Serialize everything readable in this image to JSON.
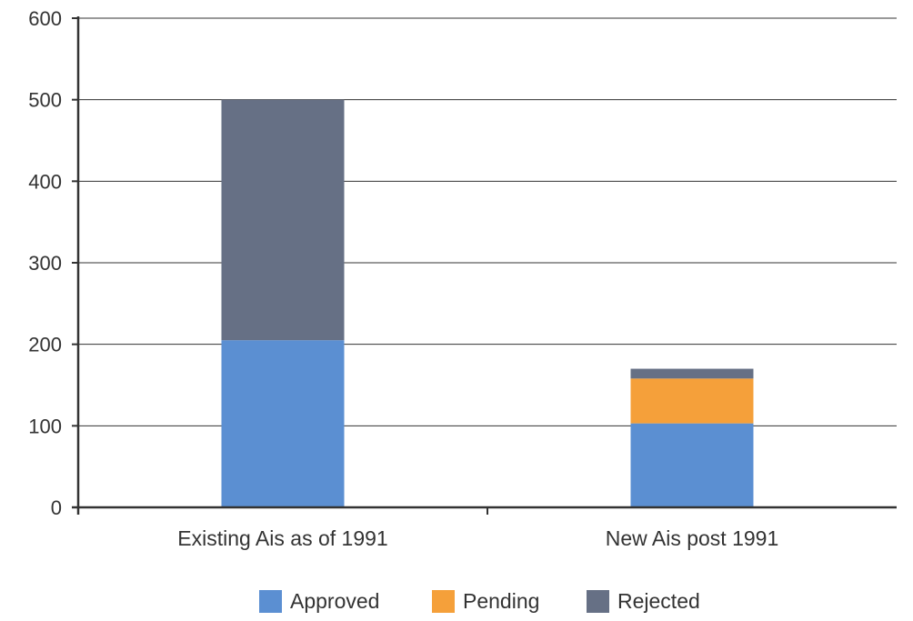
{
  "chart_data": {
    "type": "bar",
    "stacked": true,
    "categories": [
      "Existing Ais as of 1991",
      "New Ais post 1991"
    ],
    "series": [
      {
        "name": "Approved",
        "values": [
          205,
          103
        ],
        "color": "#5b8fd2"
      },
      {
        "name": "Pending",
        "values": [
          0,
          55
        ],
        "color": "#f5a03a"
      },
      {
        "name": "Rejected",
        "values": [
          295,
          12
        ],
        "color": "#667085"
      }
    ],
    "title": "",
    "xlabel": "",
    "ylabel": "",
    "ylim": [
      0,
      600
    ],
    "yticks": [
      "0",
      "100",
      "200",
      "300",
      "400",
      "500",
      "600"
    ],
    "grid": true,
    "legend": "bottom"
  }
}
